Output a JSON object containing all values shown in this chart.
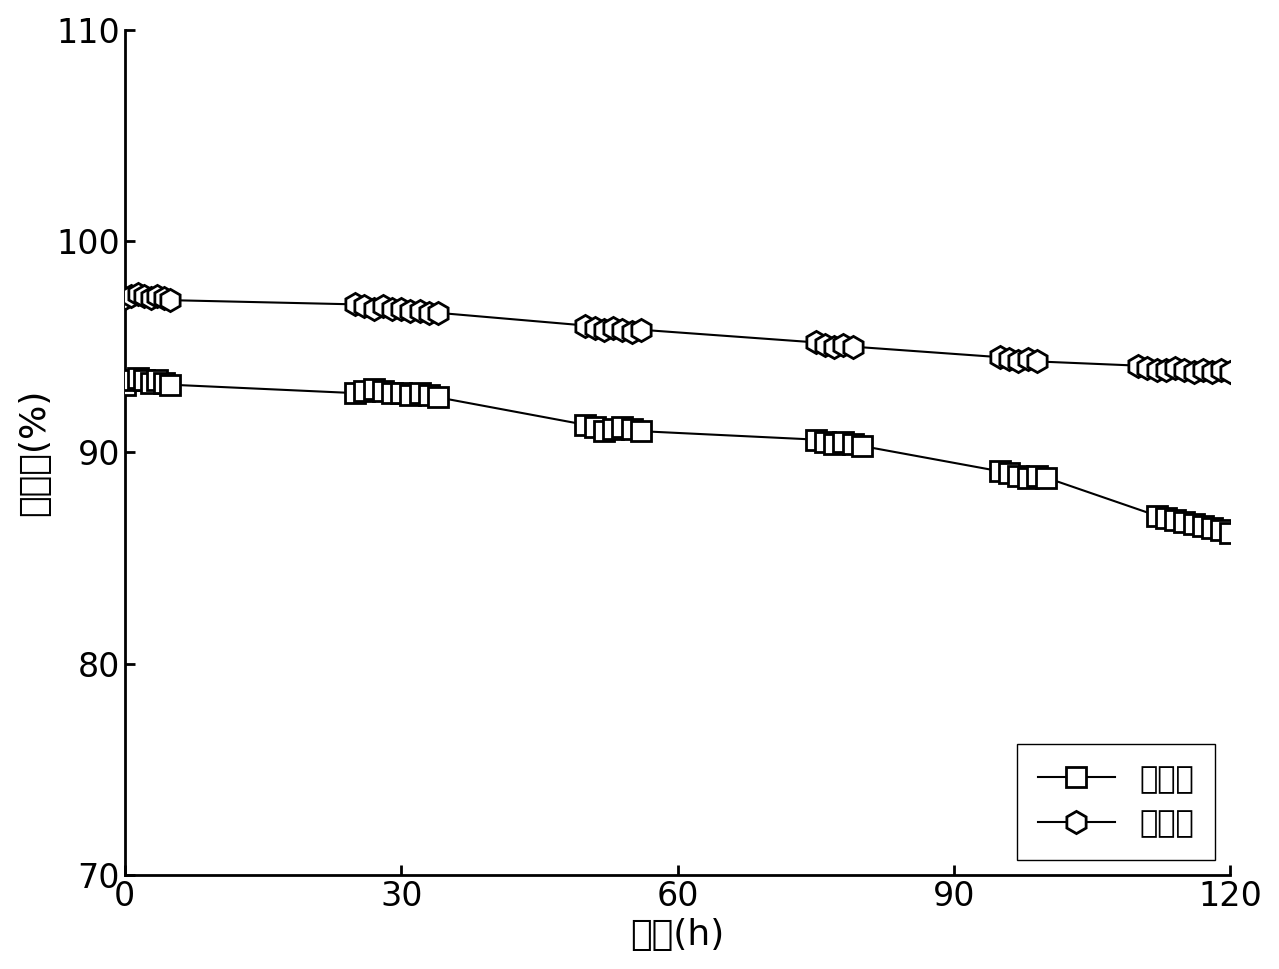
{
  "title": "",
  "xlabel": "时间(h)",
  "ylabel": "转化率(%)",
  "xlim": [
    0,
    120
  ],
  "ylim": [
    70,
    110
  ],
  "xticks": [
    0,
    30,
    60,
    90,
    120
  ],
  "yticks": [
    70,
    80,
    90,
    100,
    110
  ],
  "background_color": "#ffffff",
  "series": [
    {
      "label": "无超声",
      "marker": "s",
      "color": "#000000",
      "markersize": 14,
      "markeredgewidth": 2.0,
      "linewidth": 1.5,
      "x": [
        0,
        0.7,
        1.4,
        2.1,
        2.8,
        3.5,
        4.2,
        4.9,
        25,
        26,
        27,
        28,
        29,
        30,
        31,
        32,
        33,
        34,
        50,
        51,
        52,
        53,
        54,
        55,
        56,
        75,
        76,
        77,
        78,
        79,
        80,
        95,
        96,
        97,
        98,
        99,
        100,
        112,
        113,
        114,
        115,
        116,
        117,
        118,
        119,
        120
      ],
      "y": [
        93.2,
        93.4,
        93.5,
        93.4,
        93.3,
        93.4,
        93.3,
        93.2,
        92.8,
        92.9,
        93.0,
        92.9,
        92.8,
        92.8,
        92.7,
        92.8,
        92.7,
        92.6,
        91.3,
        91.2,
        91.0,
        91.1,
        91.2,
        91.1,
        91.0,
        90.6,
        90.5,
        90.4,
        90.5,
        90.4,
        90.3,
        89.1,
        89.0,
        88.9,
        88.8,
        88.9,
        88.8,
        87.0,
        86.9,
        86.8,
        86.7,
        86.6,
        86.5,
        86.4,
        86.3,
        86.2
      ]
    },
    {
      "label": "有超声",
      "marker": "h",
      "color": "#000000",
      "markersize": 16,
      "markeredgewidth": 2.0,
      "linewidth": 1.5,
      "x": [
        0,
        0.7,
        1.4,
        2.1,
        2.8,
        3.5,
        4.2,
        4.9,
        25,
        26,
        27,
        28,
        29,
        30,
        31,
        32,
        33,
        34,
        50,
        51,
        52,
        53,
        54,
        55,
        56,
        75,
        76,
        77,
        78,
        79,
        95,
        96,
        97,
        98,
        99,
        110,
        111,
        112,
        113,
        114,
        115,
        116,
        117,
        118,
        119,
        120
      ],
      "y": [
        97.3,
        97.4,
        97.5,
        97.4,
        97.3,
        97.4,
        97.3,
        97.2,
        97.0,
        96.9,
        96.8,
        96.9,
        96.8,
        96.8,
        96.7,
        96.7,
        96.6,
        96.6,
        96.0,
        95.9,
        95.8,
        95.9,
        95.8,
        95.7,
        95.8,
        95.2,
        95.1,
        95.0,
        95.1,
        95.0,
        94.5,
        94.4,
        94.3,
        94.4,
        94.3,
        94.1,
        94.0,
        93.9,
        93.9,
        94.0,
        93.9,
        93.8,
        93.9,
        93.8,
        93.9,
        93.8
      ]
    }
  ],
  "font_size": 26,
  "tick_fontsize": 24,
  "legend_fontsize": 22
}
